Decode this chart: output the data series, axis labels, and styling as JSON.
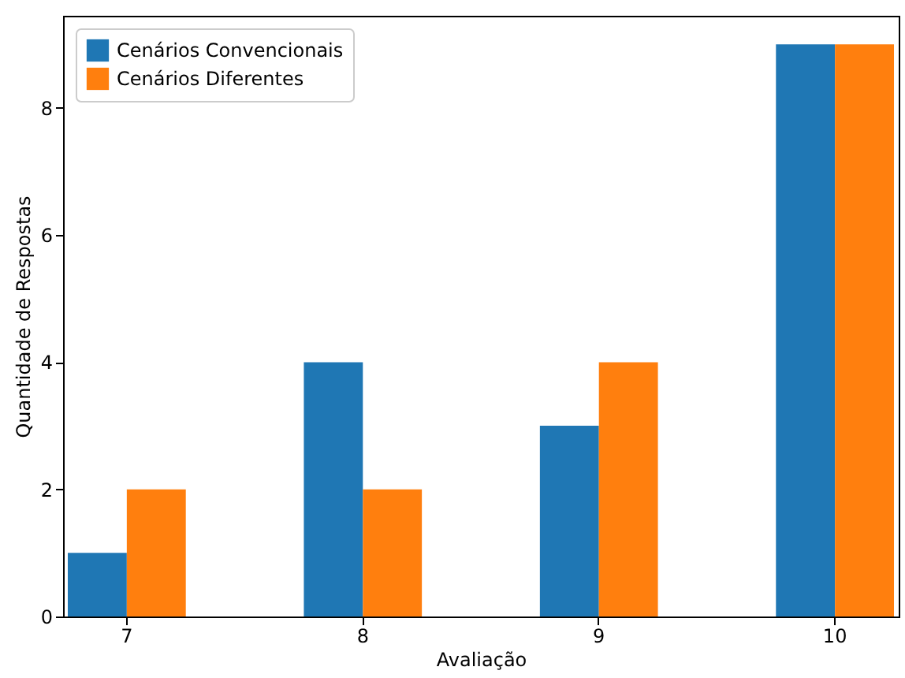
{
  "chart_data": {
    "type": "bar",
    "xlabel": "Avaliação",
    "ylabel": "Quantidade de Respostas",
    "categories": [
      "7",
      "8",
      "9",
      "10"
    ],
    "series": [
      {
        "name": "Cenários Convencionais",
        "color": "#1f77b4",
        "values": [
          1,
          4,
          3,
          9
        ]
      },
      {
        "name": "Cenários Diferentes",
        "color": "#ff7f0e",
        "values": [
          2,
          2,
          4,
          9
        ]
      }
    ],
    "ylim": [
      0,
      9.45
    ],
    "yticks": [
      0,
      2,
      4,
      6,
      8
    ],
    "grid": false,
    "legend": "top left"
  }
}
